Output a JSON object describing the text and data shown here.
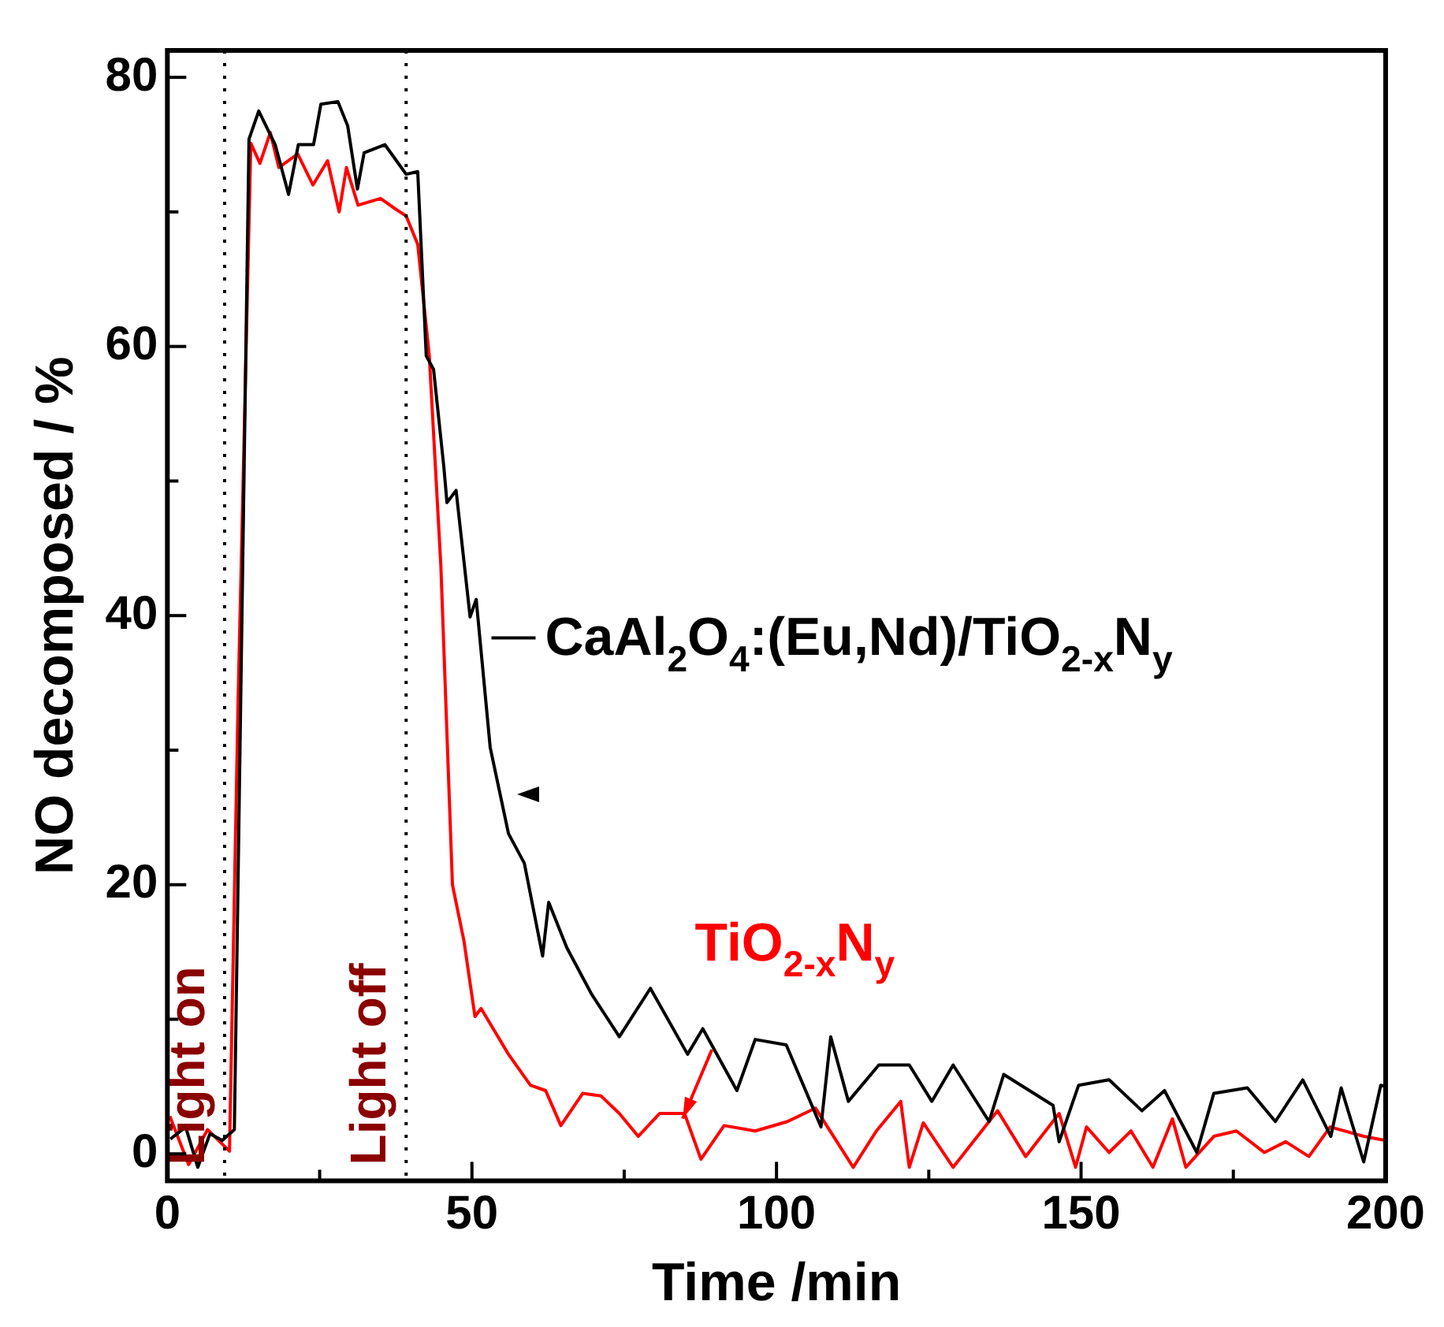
{
  "chart_data": {
    "type": "line",
    "xlabel": "Time /min",
    "ylabel": "NO decomposed / %",
    "xlim": [
      0,
      200
    ],
    "xticks": [
      0,
      {
        "value": 25,
        "label": null
      },
      50,
      {
        "value": 75,
        "label": null
      },
      100,
      {
        "value": 125,
        "label": null
      },
      150,
      {
        "value": 175,
        "label": null
      },
      200
    ],
    "ylim": [
      -2,
      82
    ],
    "yticks": [
      0,
      {
        "value": 10,
        "label": null
      },
      20,
      {
        "value": 30,
        "label": null
      },
      40,
      {
        "value": 50,
        "label": null
      },
      60,
      {
        "value": 70,
        "label": null
      },
      80
    ],
    "grid": false,
    "legend": "right",
    "marker": "none",
    "line_style": "solid",
    "ref_lines": [
      {
        "axis": "x",
        "value": 9.4,
        "label": "Light on",
        "color": "#000000",
        "line_style": "dotted"
      },
      {
        "axis": "x",
        "value": 39.2,
        "label": "Light off",
        "color": "#000000",
        "line_style": "dotted"
      }
    ],
    "series": [
      {
        "name": "CaAl$_{2}$O$_{4}$:(Eu,Nd)/TiO$_{2-x}$N$_{y}$",
        "color": "#000000",
        "x": [
          0.5,
          3,
          5,
          7,
          9,
          11,
          13.4,
          15,
          17.7,
          19.9,
          21.5,
          24,
          25.2,
          28,
          29.6,
          31.2,
          32.3,
          35.7,
          39.2,
          41.1,
          42.5,
          43.7,
          45.4,
          45.9,
          47.4,
          49.7,
          50.7,
          53,
          56,
          58.6,
          61.6,
          62.6,
          65.6,
          69.6,
          74.2,
          79.3,
          85.4,
          87.9,
          93.5,
          96.5,
          101.6,
          107.3,
          108.9,
          111.8,
          116.8,
          121.8,
          125.5,
          129,
          134.9,
          137.3,
          145.4,
          146.4,
          149.6,
          154.6,
          160,
          163.7,
          169,
          171.8,
          177.3,
          181.9,
          186.4,
          191,
          192.7,
          196.4,
          199.2,
          200
        ],
        "values": [
          1.1,
          2,
          -1,
          1.5,
          1,
          1.8,
          75.4,
          77.5,
          75,
          71.3,
          75,
          75,
          78,
          78.2,
          76.4,
          71.7,
          74.4,
          75,
          72.8,
          73,
          59.3,
          58.3,
          51,
          48.4,
          49.3,
          39.9,
          41.2,
          30.2,
          23.8,
          21.6,
          14.7,
          18.7,
          15.3,
          11.9,
          8.7,
          12.3,
          7.4,
          9.3,
          4.7,
          8.5,
          8.1,
          2,
          8.7,
          3.9,
          6.6,
          6.6,
          3.9,
          6.6,
          2.4,
          5.9,
          3.6,
          0.9,
          5.1,
          5.5,
          3.2,
          4.7,
          0.1,
          4.5,
          4.9,
          2.4,
          5.5,
          1.3,
          4.9,
          -0.6,
          5.1,
          5
        ]
      },
      {
        "name": "TiO$_{2-x}$N$_{y}$",
        "color": "#ff0000",
        "x": [
          0.4,
          3.5,
          6.6,
          10.2,
          11.6,
          13.7,
          15.2,
          16.9,
          18.3,
          21.4,
          23.9,
          26.3,
          28.2,
          29.4,
          31.3,
          35,
          37.5,
          39.2,
          41.1,
          43,
          44.9,
          46.8,
          48.7,
          50.5,
          51.5,
          56,
          59.6,
          62.1,
          64.6,
          68.2,
          71.2,
          74.2,
          77.3,
          80.8,
          84.9,
          87.6,
          91.4,
          96.5,
          101.8,
          106.4,
          112.6,
          116.4,
          120.4,
          121.8,
          124.1,
          129,
          136.3,
          140.9,
          146.4,
          149.1,
          150.9,
          154.6,
          158.2,
          161.8,
          165,
          167.2,
          171.8,
          175.5,
          180.1,
          183.6,
          187.4,
          190.9,
          196.4,
          200
        ],
        "values": [
          2.8,
          -0.8,
          1.8,
          0.2,
          33.4,
          75.1,
          73.6,
          75.9,
          73.3,
          74.3,
          72,
          73.8,
          70,
          73.3,
          70.5,
          71,
          70.2,
          69.7,
          67.6,
          59.3,
          43.7,
          20,
          15.8,
          10.2,
          10.8,
          7.4,
          5.1,
          4.7,
          2.1,
          4.5,
          4.3,
          3,
          1.3,
          3,
          3,
          -0.4,
          2.1,
          1.7,
          2.4,
          3.4,
          -1,
          1.7,
          3.9,
          -1,
          2.3,
          -1,
          3.2,
          -0.2,
          3,
          -1,
          2,
          0.1,
          1.7,
          -1,
          2.6,
          -1,
          1.3,
          1.7,
          0.1,
          0.9,
          -0.2,
          2,
          1.3,
          1
        ]
      }
    ]
  }
}
